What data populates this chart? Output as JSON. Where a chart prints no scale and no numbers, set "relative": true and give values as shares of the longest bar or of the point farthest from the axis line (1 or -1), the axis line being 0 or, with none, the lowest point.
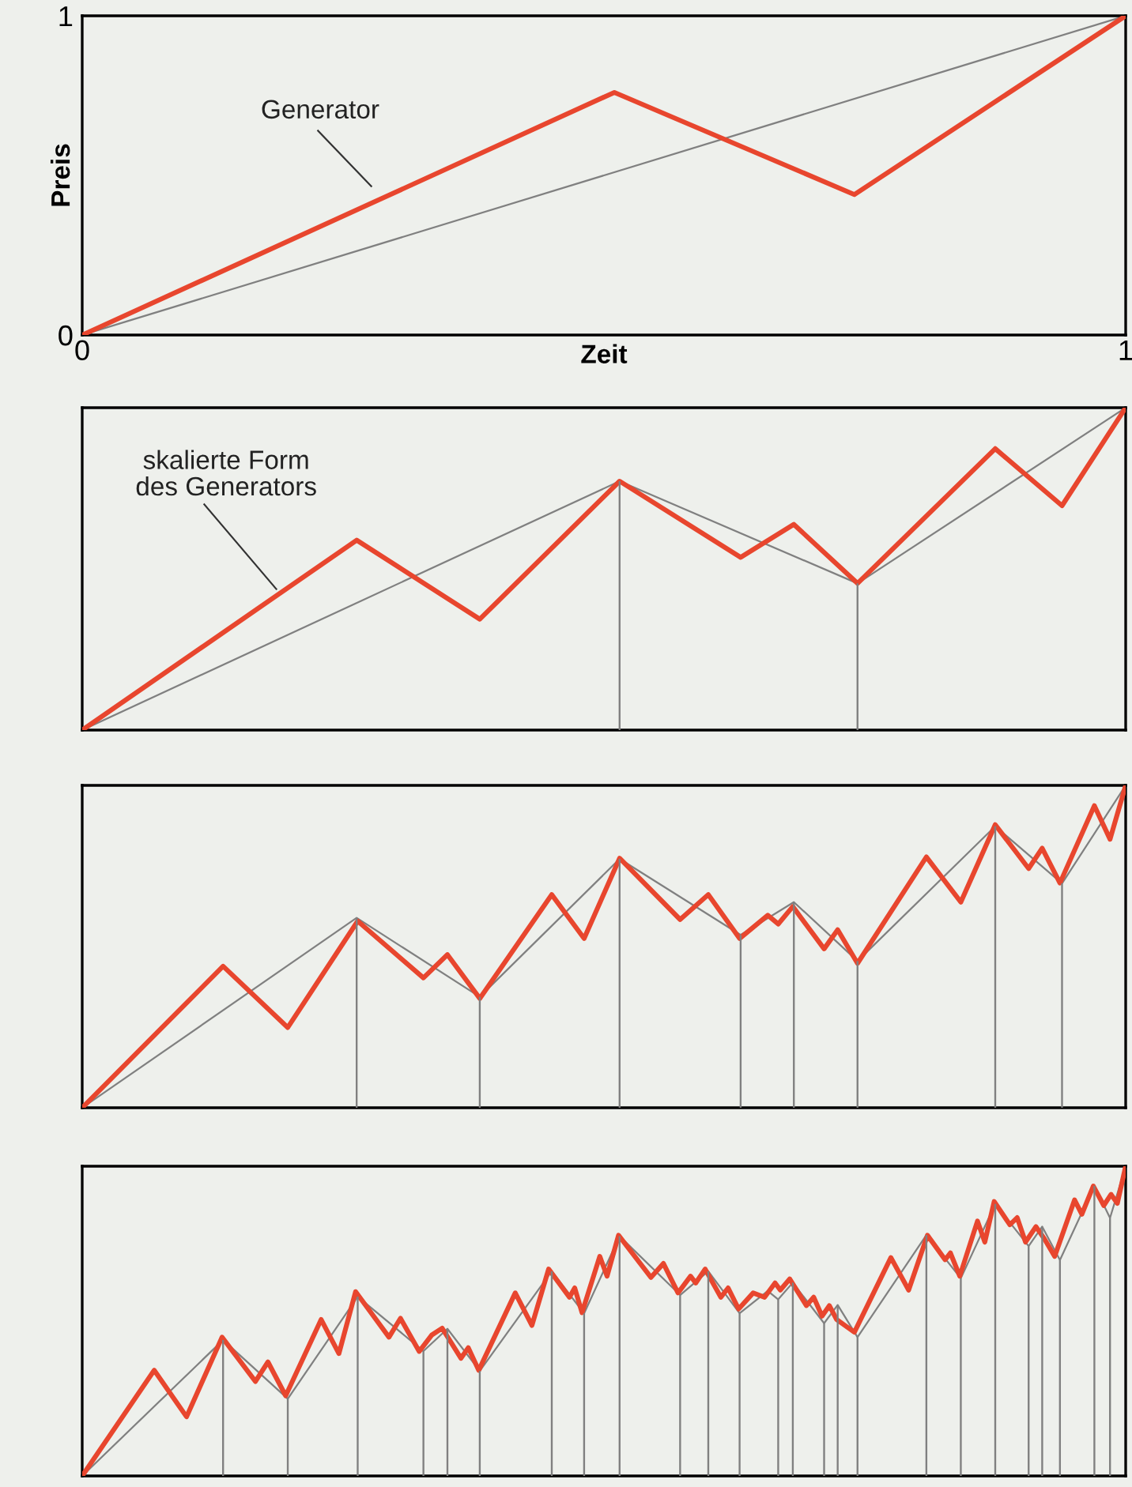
{
  "chart_data": [
    {
      "type": "line",
      "xlabel": "Zeit",
      "ylabel": "Preis",
      "xlim": [
        0,
        1
      ],
      "ylim": [
        0,
        1
      ],
      "xticks": [
        0,
        1
      ],
      "yticks": [
        0,
        1
      ],
      "annotations": [
        "Generator"
      ],
      "series": [
        {
          "color": "#808080",
          "x": [
            0,
            1
          ],
          "values": [
            0,
            1
          ]
        },
        {
          "color": "#e8462e",
          "x": [
            0,
            0.51,
            0.74,
            1
          ],
          "values": [
            0,
            0.76,
            0.44,
            1
          ]
        }
      ]
    },
    {
      "type": "line",
      "relative": true,
      "xlim": [
        0,
        1
      ],
      "annotations": [
        "skalierte Form\ndes Generators"
      ],
      "series": [
        {
          "type": "bar",
          "color": "#808080",
          "x": [
            0.515,
            0.743
          ],
          "values": [
            0.772,
            0.455
          ]
        },
        {
          "color": "#808080",
          "x": [
            0,
            0.515,
            0.743,
            1
          ],
          "values": [
            0,
            0.772,
            0.455,
            1
          ]
        },
        {
          "color": "#e8462e",
          "x": [
            0,
            0.263,
            0.381,
            0.515,
            0.631,
            0.682,
            0.743,
            0.875,
            0.939,
            1
          ],
          "values": [
            0,
            0.589,
            0.344,
            0.772,
            0.536,
            0.638,
            0.455,
            0.873,
            0.696,
            1
          ]
        }
      ]
    },
    {
      "type": "line",
      "relative": true,
      "xlim": [
        0,
        1
      ],
      "series": [
        {
          "type": "bar",
          "color": "#808080",
          "x": [
            0.263,
            0.381,
            0.515,
            0.631,
            0.682,
            0.743,
            0.875,
            0.939
          ],
          "values": [
            0.589,
            0.344,
            0.772,
            0.536,
            0.638,
            0.455,
            0.873,
            0.696
          ]
        },
        {
          "color": "#808080",
          "x": [
            0,
            0.263,
            0.381,
            0.515,
            0.631,
            0.682,
            0.743,
            0.875,
            0.939,
            1
          ],
          "values": [
            0,
            0.589,
            0.344,
            0.772,
            0.536,
            0.638,
            0.455,
            0.873,
            0.696,
            1
          ]
        },
        {
          "color": "#e8462e",
          "x": [
            0,
            0.135,
            0.197,
            0.264,
            0.327,
            0.35,
            0.381,
            0.45,
            0.481,
            0.515,
            0.573,
            0.6,
            0.63,
            0.657,
            0.667,
            0.681,
            0.711,
            0.724,
            0.743,
            0.809,
            0.842,
            0.875,
            0.907,
            0.92,
            0.937,
            0.97,
            0.985,
            1
          ],
          "values": [
            0,
            0.439,
            0.249,
            0.579,
            0.403,
            0.475,
            0.339,
            0.661,
            0.525,
            0.774,
            0.584,
            0.661,
            0.525,
            0.597,
            0.57,
            0.624,
            0.493,
            0.552,
            0.448,
            0.778,
            0.638,
            0.878,
            0.742,
            0.805,
            0.697,
            0.937,
            0.833,
            1
          ]
        }
      ]
    },
    {
      "type": "line",
      "relative": true,
      "xlim": [
        0,
        1
      ],
      "series": [
        {
          "type": "bar",
          "color": "#808080",
          "x": [
            0.135,
            0.197,
            0.264,
            0.327,
            0.35,
            0.381,
            0.45,
            0.481,
            0.515,
            0.573,
            0.6,
            0.63,
            0.667,
            0.681,
            0.711,
            0.724,
            0.743,
            0.809,
            0.842,
            0.875,
            0.907,
            0.92,
            0.937,
            0.97,
            0.985
          ],
          "values": [
            0.439,
            0.249,
            0.579,
            0.403,
            0.475,
            0.339,
            0.661,
            0.525,
            0.774,
            0.584,
            0.661,
            0.525,
            0.57,
            0.624,
            0.493,
            0.552,
            0.448,
            0.778,
            0.638,
            0.878,
            0.742,
            0.805,
            0.697,
            0.937,
            0.833
          ]
        },
        {
          "color": "#808080",
          "x": [
            0,
            0.135,
            0.197,
            0.264,
            0.327,
            0.35,
            0.381,
            0.45,
            0.481,
            0.515,
            0.573,
            0.6,
            0.63,
            0.657,
            0.667,
            0.681,
            0.711,
            0.724,
            0.743,
            0.809,
            0.842,
            0.875,
            0.907,
            0.92,
            0.937,
            0.97,
            0.985,
            1
          ],
          "values": [
            0,
            0.439,
            0.249,
            0.579,
            0.403,
            0.475,
            0.339,
            0.661,
            0.525,
            0.774,
            0.584,
            0.661,
            0.525,
            0.597,
            0.57,
            0.624,
            0.493,
            0.552,
            0.448,
            0.778,
            0.638,
            0.878,
            0.742,
            0.805,
            0.697,
            0.937,
            0.833,
            1
          ]
        },
        {
          "color": "#e8462e",
          "x": [
            0,
            0.069,
            0.1,
            0.134,
            0.166,
            0.178,
            0.195,
            0.229,
            0.246,
            0.262,
            0.294,
            0.305,
            0.323,
            0.335,
            0.345,
            0.363,
            0.37,
            0.38,
            0.415,
            0.431,
            0.447,
            0.467,
            0.472,
            0.479,
            0.496,
            0.503,
            0.514,
            0.545,
            0.557,
            0.571,
            0.583,
            0.588,
            0.597,
            0.612,
            0.619,
            0.629,
            0.643,
            0.654,
            0.664,
            0.669,
            0.678,
            0.694,
            0.701,
            0.709,
            0.716,
            0.723,
            0.74,
            0.775,
            0.792,
            0.81,
            0.827,
            0.832,
            0.841,
            0.858,
            0.865,
            0.874,
            0.889,
            0.896,
            0.904,
            0.914,
            0.922,
            0.932,
            0.951,
            0.958,
            0.969,
            0.979,
            0.986,
            0.992,
            1
          ],
          "values": [
            0,
            0.341,
            0.191,
            0.448,
            0.305,
            0.368,
            0.259,
            0.505,
            0.395,
            0.595,
            0.448,
            0.509,
            0.402,
            0.455,
            0.477,
            0.38,
            0.414,
            0.341,
            0.591,
            0.486,
            0.668,
            0.577,
            0.607,
            0.527,
            0.709,
            0.645,
            0.777,
            0.641,
            0.686,
            0.591,
            0.645,
            0.623,
            0.668,
            0.577,
            0.607,
            0.539,
            0.591,
            0.577,
            0.623,
            0.6,
            0.636,
            0.55,
            0.577,
            0.516,
            0.55,
            0.505,
            0.464,
            0.705,
            0.6,
            0.777,
            0.698,
            0.72,
            0.645,
            0.823,
            0.755,
            0.886,
            0.811,
            0.834,
            0.755,
            0.805,
            0.766,
            0.709,
            0.891,
            0.845,
            0.936,
            0.873,
            0.909,
            0.88,
            1
          ]
        }
      ]
    }
  ]
}
